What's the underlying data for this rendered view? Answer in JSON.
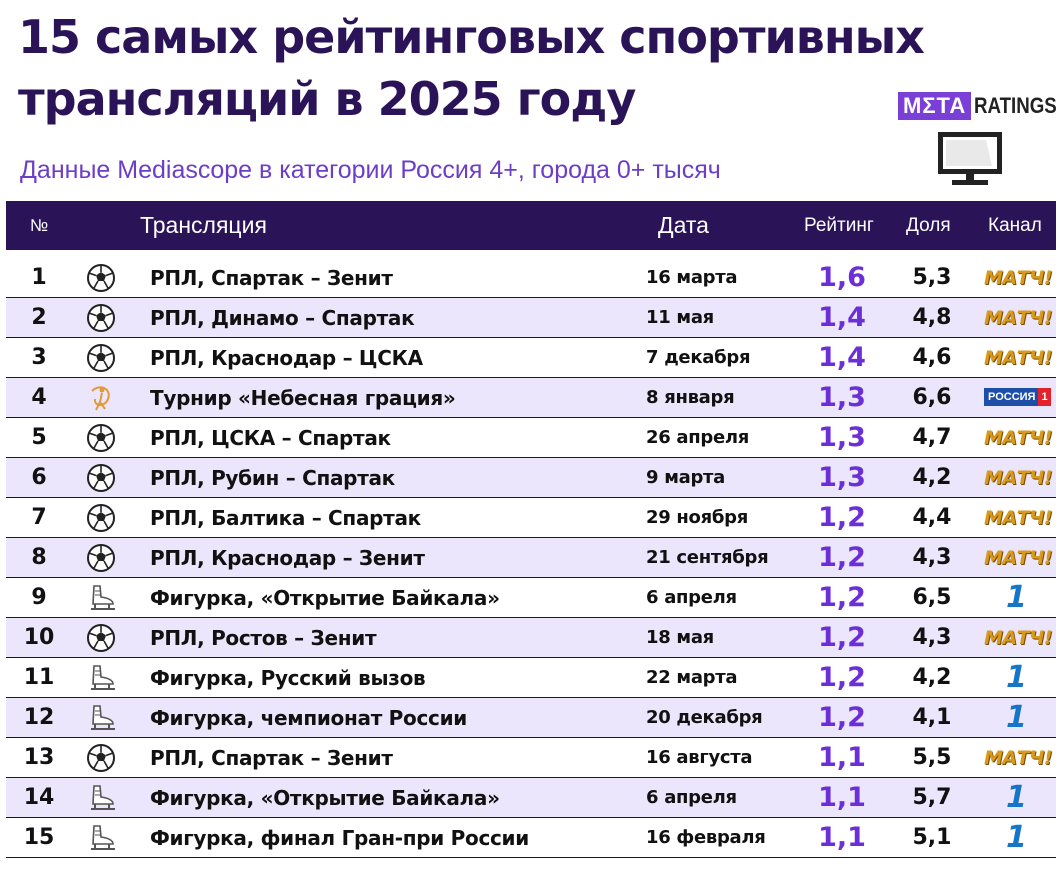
{
  "header": {
    "title_line1": "15 самых рейтинговых спортивных",
    "title_line2": "трансляций в 2025 году",
    "subtitle": "Данные Mediascope в категории Россия 4+, города 0+ тысяч",
    "brand_box": "MΣTA",
    "brand_text": "RATINGS"
  },
  "columns": {
    "num": "№",
    "title": "Трансляция",
    "date": "Дата",
    "rating": "Рейтинг",
    "share": "Доля",
    "channel": "Канал"
  },
  "logos": {
    "match": "МАТЧ!",
    "russia1_text": "РОССИЯ",
    "russia1_num": "1",
    "one": "1"
  },
  "chart_data": {
    "type": "table",
    "columns": [
      "№",
      "Трансляция",
      "Дата",
      "Рейтинг",
      "Доля",
      "Канал"
    ],
    "rows": [
      {
        "num": "1",
        "sport": "football-icon",
        "title": "РПЛ, Спартак – Зенит",
        "date": "16 марта",
        "rating": "1,6",
        "share": "5,3",
        "channel": "match"
      },
      {
        "num": "2",
        "sport": "football-icon",
        "title": "РПЛ, Динамо – Спартак",
        "date": "11 мая",
        "rating": "1,4",
        "share": "4,8",
        "channel": "match"
      },
      {
        "num": "3",
        "sport": "football-icon",
        "title": "РПЛ, Краснодар – ЦСКА",
        "date": "7 декабря",
        "rating": "1,4",
        "share": "4,6",
        "channel": "match"
      },
      {
        "num": "4",
        "sport": "gymnastics-icon",
        "title": "Турнир «Небесная грация»",
        "date": "8 января",
        "rating": "1,3",
        "share": "6,6",
        "channel": "russia1"
      },
      {
        "num": "5",
        "sport": "football-icon",
        "title": "РПЛ, ЦСКА – Спартак",
        "date": "26 апреля",
        "rating": "1,3",
        "share": "4,7",
        "channel": "match"
      },
      {
        "num": "6",
        "sport": "football-icon",
        "title": "РПЛ, Рубин – Спартак",
        "date": "9 марта",
        "rating": "1,3",
        "share": "4,2",
        "channel": "match"
      },
      {
        "num": "7",
        "sport": "football-icon",
        "title": "РПЛ, Балтика – Спартак",
        "date": "29 ноября",
        "rating": "1,2",
        "share": "4,4",
        "channel": "match"
      },
      {
        "num": "8",
        "sport": "football-icon",
        "title": "РПЛ, Краснодар – Зенит",
        "date": "21 сентября",
        "rating": "1,2",
        "share": "4,3",
        "channel": "match"
      },
      {
        "num": "9",
        "sport": "skate-icon",
        "title": "Фигурка, «Открытие Байкала»",
        "date": "6 апреля",
        "rating": "1,2",
        "share": "6,5",
        "channel": "one"
      },
      {
        "num": "10",
        "sport": "football-icon",
        "title": "РПЛ, Ростов – Зенит",
        "date": "18 мая",
        "rating": "1,2",
        "share": "4,3",
        "channel": "match"
      },
      {
        "num": "11",
        "sport": "skate-icon",
        "title": "Фигурка, Русский вызов",
        "date": "22 марта",
        "rating": "1,2",
        "share": "4,2",
        "channel": "one"
      },
      {
        "num": "12",
        "sport": "skate-icon",
        "title": "Фигурка, чемпионат России",
        "date": "20 декабря",
        "rating": "1,2",
        "share": "4,1",
        "channel": "one"
      },
      {
        "num": "13",
        "sport": "football-icon",
        "title": "РПЛ, Спартак – Зенит",
        "date": "16 августа",
        "rating": "1,1",
        "share": "5,5",
        "channel": "match"
      },
      {
        "num": "14",
        "sport": "skate-icon",
        "title": "Фигурка, «Открытие Байкала»",
        "date": "6 апреля",
        "rating": "1,1",
        "share": "5,7",
        "channel": "one"
      },
      {
        "num": "15",
        "sport": "skate-icon",
        "title": "Фигурка, финал Гран-при России",
        "date": "16 февраля",
        "rating": "1,1",
        "share": "5,1",
        "channel": "one"
      }
    ]
  },
  "colors": {
    "header_bg": "#2a1457",
    "accent": "#6c2ed6",
    "row_alt": "#ebe6fb",
    "match_logo": "#d79a1c",
    "first_channel": "#1576c8"
  }
}
